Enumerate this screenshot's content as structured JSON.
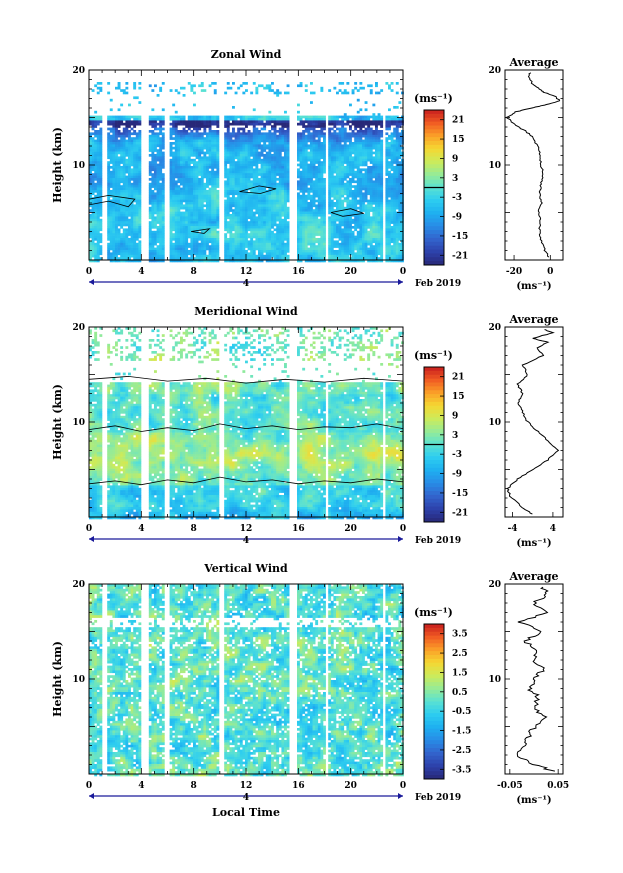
{
  "chart_data": [
    {
      "type": "heatmap",
      "title": "Zonal Wind",
      "ylabel": "Height (km)",
      "xlabel": "",
      "x_ticks": [
        "0",
        "4",
        "8",
        "12",
        "16",
        "20",
        "0"
      ],
      "y_ticks": [
        "10",
        "20"
      ],
      "xlim_hours": [
        0,
        24
      ],
      "ylim_km": [
        0,
        20
      ],
      "date_tick": "4",
      "date_label": "Feb 2019",
      "colorbar": {
        "unit": "(ms⁻¹)",
        "ticks": [
          "21",
          "15",
          "9",
          "3",
          "-3",
          "-9",
          "-15",
          "-21"
        ],
        "range": [
          -24,
          24
        ],
        "zero_line": 0
      },
      "average_panel": {
        "title": "Average",
        "xlabel": "(ms⁻¹)",
        "x_ticks": [
          "-20",
          "0"
        ],
        "xlim": [
          -25,
          7
        ],
        "y_ticks": [
          "10",
          "20"
        ],
        "profile": [
          [
            -1,
            0.3
          ],
          [
            -3,
            1.0
          ],
          [
            -5,
            2.0
          ],
          [
            -6,
            3.0
          ],
          [
            -5.5,
            4.0
          ],
          [
            -6.5,
            5.0
          ],
          [
            -5,
            6.0
          ],
          [
            -6,
            7.0
          ],
          [
            -5,
            8.0
          ],
          [
            -4,
            9.0
          ],
          [
            -5,
            10.0
          ],
          [
            -5.5,
            11.0
          ],
          [
            -7,
            12.0
          ],
          [
            -10,
            13.0
          ],
          [
            -14,
            13.6
          ],
          [
            -20,
            14.3
          ],
          [
            -24,
            15.0
          ],
          [
            -19,
            15.6
          ],
          [
            -8,
            16.1
          ],
          [
            1,
            16.5
          ],
          [
            5,
            16.8
          ],
          [
            3,
            17.2
          ],
          [
            -3,
            17.6
          ],
          [
            -6,
            18.0
          ],
          [
            -10,
            18.6
          ],
          [
            -12,
            19.2
          ],
          [
            -11,
            19.8
          ]
        ]
      }
    },
    {
      "type": "heatmap",
      "title": "Meridional Wind",
      "ylabel": "Height (km)",
      "xlabel": "",
      "x_ticks": [
        "0",
        "4",
        "8",
        "12",
        "16",
        "20",
        "0"
      ],
      "y_ticks": [
        "10",
        "20"
      ],
      "xlim_hours": [
        0,
        24
      ],
      "ylim_km": [
        0,
        20
      ],
      "date_tick": "4",
      "date_label": "Feb 2019",
      "colorbar": {
        "unit": "(ms⁻¹)",
        "ticks": [
          "21",
          "15",
          "9",
          "3",
          "-3",
          "-9",
          "-15",
          "-21"
        ],
        "range": [
          -24,
          24
        ],
        "zero_line": 0
      },
      "average_panel": {
        "title": "Average",
        "xlabel": "(ms⁻¹)",
        "x_ticks": [
          "-4",
          "4"
        ],
        "xlim": [
          -5.5,
          6
        ],
        "y_ticks": [
          "10",
          "20"
        ],
        "profile": [
          [
            0,
            0.3
          ],
          [
            -2,
            1.0
          ],
          [
            -4.5,
            2.2
          ],
          [
            -5,
            3.0
          ],
          [
            -3,
            4.0
          ],
          [
            0,
            5.0
          ],
          [
            3,
            6.0
          ],
          [
            5,
            7.0
          ],
          [
            3,
            8.0
          ],
          [
            1,
            9.0
          ],
          [
            -1,
            10.0
          ],
          [
            -2,
            11.0
          ],
          [
            -3,
            12.0
          ],
          [
            -2,
            13.0
          ],
          [
            -3,
            14.0
          ],
          [
            -1,
            15.0
          ],
          [
            -2,
            16.0
          ],
          [
            2,
            17.0
          ],
          [
            1,
            17.8
          ],
          [
            3,
            18.4
          ],
          [
            0,
            18.8
          ],
          [
            4,
            19.4
          ],
          [
            2,
            19.8
          ]
        ]
      }
    },
    {
      "type": "heatmap",
      "title": "Vertical Wind",
      "ylabel": "Height (km)",
      "xlabel": "Local Time",
      "x_ticks": [
        "0",
        "4",
        "8",
        "12",
        "16",
        "20",
        "0"
      ],
      "y_ticks": [
        "10",
        "20"
      ],
      "xlim_hours": [
        0,
        24
      ],
      "ylim_km": [
        0,
        20
      ],
      "date_tick": "4",
      "date_label": "Feb 2019",
      "colorbar": {
        "unit": "(ms⁻¹)",
        "ticks": [
          "3.5",
          "2.5",
          "1.5",
          "0.5",
          "-0.5",
          "-1.5",
          "-2.5",
          "-3.5"
        ],
        "range": [
          -4,
          4
        ]
      },
      "average_panel": {
        "title": "Average",
        "xlabel": "(ms⁻¹)",
        "x_ticks": [
          "-0.05",
          "0.05"
        ],
        "xlim": [
          -0.06,
          0.06
        ],
        "y_ticks": [
          "10",
          "20"
        ],
        "profile": [
          [
            0.04,
            0.3
          ],
          [
            0.0,
            1.0
          ],
          [
            -0.04,
            2.0
          ],
          [
            -0.02,
            3.0
          ],
          [
            -0.01,
            4.0
          ],
          [
            0.0,
            5.0
          ],
          [
            0.02,
            6.0
          ],
          [
            0.0,
            7.0
          ],
          [
            0.01,
            8.0
          ],
          [
            -0.01,
            9.0
          ],
          [
            0.0,
            10.0
          ],
          [
            0.02,
            11.0
          ],
          [
            0.0,
            12.0
          ],
          [
            0.01,
            13.0
          ],
          [
            -0.02,
            14.0
          ],
          [
            0.02,
            15.0
          ],
          [
            -0.03,
            16.0
          ],
          [
            0.03,
            17.0
          ],
          [
            0.0,
            18.0
          ],
          [
            0.03,
            19.0
          ],
          [
            0.01,
            19.8
          ]
        ]
      }
    }
  ]
}
